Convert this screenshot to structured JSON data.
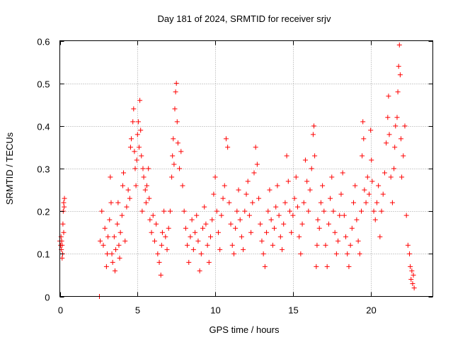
{
  "chart_data": {
    "type": "scatter",
    "title": "Day 181 of 2024, SRMTID for receiver srjv",
    "xlabel": "GPS time / hours",
    "ylabel": "SRMTID / TECUs",
    "xlim": [
      0,
      24
    ],
    "ylim": [
      0,
      0.6
    ],
    "xticks": [
      0,
      5,
      10,
      15,
      20
    ],
    "xtick_labels": [
      "0",
      "5",
      "10",
      "15",
      "20"
    ],
    "yticks": [
      0,
      0.1,
      0.2,
      0.3,
      0.4,
      0.5,
      0.6
    ],
    "ytick_labels": [
      "0",
      "0.1",
      "0.2",
      "0.3",
      "0.4",
      "0.5",
      "0.6"
    ],
    "grid": true,
    "marker": "+",
    "marker_color": "#ff0000",
    "series": [
      {
        "name": "srjv",
        "points": [
          [
            0.0,
            0.13
          ],
          [
            0.05,
            0.12
          ],
          [
            0.08,
            0.14
          ],
          [
            0.1,
            0.11
          ],
          [
            0.12,
            0.13
          ],
          [
            0.15,
            0.12
          ],
          [
            0.18,
            0.1
          ],
          [
            0.2,
            0.17
          ],
          [
            0.22,
            0.2
          ],
          [
            0.25,
            0.22
          ],
          [
            0.28,
            0.21
          ],
          [
            0.3,
            0.23
          ],
          [
            0.15,
            0.09
          ],
          [
            0.25,
            0.15
          ],
          [
            2.55,
            0.0
          ],
          [
            2.6,
            0.13
          ],
          [
            2.7,
            0.2
          ],
          [
            2.8,
            0.12
          ],
          [
            2.9,
            0.16
          ],
          [
            3.0,
            0.07
          ],
          [
            3.05,
            0.1
          ],
          [
            3.1,
            0.14
          ],
          [
            3.2,
            0.18
          ],
          [
            3.25,
            0.28
          ],
          [
            3.3,
            0.22
          ],
          [
            3.35,
            0.1
          ],
          [
            3.4,
            0.08
          ],
          [
            3.5,
            0.14
          ],
          [
            3.55,
            0.06
          ],
          [
            3.6,
            0.11
          ],
          [
            3.7,
            0.17
          ],
          [
            3.75,
            0.22
          ],
          [
            3.8,
            0.12
          ],
          [
            3.85,
            0.09
          ],
          [
            3.9,
            0.15
          ],
          [
            4.0,
            0.19
          ],
          [
            4.05,
            0.26
          ],
          [
            4.1,
            0.29
          ],
          [
            4.2,
            0.13
          ],
          [
            4.3,
            0.21
          ],
          [
            4.4,
            0.25
          ],
          [
            4.5,
            0.23
          ],
          [
            4.55,
            0.35
          ],
          [
            4.6,
            0.37
          ],
          [
            4.7,
            0.41
          ],
          [
            4.75,
            0.44
          ],
          [
            4.8,
            0.34
          ],
          [
            4.85,
            0.3
          ],
          [
            4.9,
            0.26
          ],
          [
            4.95,
            0.32
          ],
          [
            5.0,
            0.38
          ],
          [
            5.05,
            0.41
          ],
          [
            5.1,
            0.35
          ],
          [
            5.15,
            0.46
          ],
          [
            5.2,
            0.39
          ],
          [
            5.25,
            0.33
          ],
          [
            5.3,
            0.2
          ],
          [
            5.35,
            0.3
          ],
          [
            5.4,
            0.28
          ],
          [
            5.5,
            0.25
          ],
          [
            5.55,
            0.22
          ],
          [
            5.6,
            0.26
          ],
          [
            5.7,
            0.3
          ],
          [
            5.75,
            0.23
          ],
          [
            5.8,
            0.18
          ],
          [
            5.9,
            0.15
          ],
          [
            6.0,
            0.19
          ],
          [
            6.1,
            0.13
          ],
          [
            6.2,
            0.17
          ],
          [
            6.3,
            0.1
          ],
          [
            6.4,
            0.08
          ],
          [
            6.5,
            0.05
          ],
          [
            6.55,
            0.12
          ],
          [
            6.6,
            0.15
          ],
          [
            6.7,
            0.2
          ],
          [
            6.8,
            0.14
          ],
          [
            6.9,
            0.11
          ],
          [
            7.0,
            0.16
          ],
          [
            7.1,
            0.2
          ],
          [
            7.2,
            0.28
          ],
          [
            7.25,
            0.33
          ],
          [
            7.3,
            0.37
          ],
          [
            7.35,
            0.31
          ],
          [
            7.4,
            0.44
          ],
          [
            7.45,
            0.48
          ],
          [
            7.5,
            0.5
          ],
          [
            7.55,
            0.41
          ],
          [
            7.6,
            0.36
          ],
          [
            7.7,
            0.3
          ],
          [
            7.8,
            0.34
          ],
          [
            7.9,
            0.26
          ],
          [
            8.0,
            0.2
          ],
          [
            8.1,
            0.16
          ],
          [
            8.2,
            0.12
          ],
          [
            8.3,
            0.08
          ],
          [
            8.4,
            0.14
          ],
          [
            8.5,
            0.18
          ],
          [
            8.6,
            0.11
          ],
          [
            8.7,
            0.15
          ],
          [
            8.8,
            0.19
          ],
          [
            8.9,
            0.13
          ],
          [
            9.0,
            0.06
          ],
          [
            9.1,
            0.1
          ],
          [
            9.2,
            0.16
          ],
          [
            9.3,
            0.21
          ],
          [
            9.4,
            0.17
          ],
          [
            9.5,
            0.12
          ],
          [
            9.6,
            0.08
          ],
          [
            9.7,
            0.14
          ],
          [
            9.8,
            0.18
          ],
          [
            9.9,
            0.24
          ],
          [
            10.0,
            0.28
          ],
          [
            10.1,
            0.2
          ],
          [
            10.2,
            0.15
          ],
          [
            10.3,
            0.11
          ],
          [
            10.4,
            0.19
          ],
          [
            10.5,
            0.23
          ],
          [
            10.6,
            0.26
          ],
          [
            10.7,
            0.37
          ],
          [
            10.8,
            0.35
          ],
          [
            10.9,
            0.22
          ],
          [
            11.0,
            0.17
          ],
          [
            11.1,
            0.12
          ],
          [
            11.2,
            0.1
          ],
          [
            11.3,
            0.16
          ],
          [
            11.4,
            0.2
          ],
          [
            11.5,
            0.25
          ],
          [
            11.6,
            0.18
          ],
          [
            11.7,
            0.14
          ],
          [
            11.8,
            0.11
          ],
          [
            11.9,
            0.2
          ],
          [
            12.0,
            0.24
          ],
          [
            12.1,
            0.27
          ],
          [
            12.2,
            0.19
          ],
          [
            12.3,
            0.15
          ],
          [
            12.4,
            0.22
          ],
          [
            12.5,
            0.29
          ],
          [
            12.6,
            0.35
          ],
          [
            12.7,
            0.31
          ],
          [
            12.8,
            0.23
          ],
          [
            12.9,
            0.17
          ],
          [
            13.0,
            0.13
          ],
          [
            13.1,
            0.1
          ],
          [
            13.2,
            0.07
          ],
          [
            13.3,
            0.15
          ],
          [
            13.4,
            0.2
          ],
          [
            13.5,
            0.25
          ],
          [
            13.6,
            0.18
          ],
          [
            13.7,
            0.12
          ],
          [
            13.8,
            0.16
          ],
          [
            13.9,
            0.21
          ],
          [
            14.0,
            0.26
          ],
          [
            14.1,
            0.19
          ],
          [
            14.2,
            0.14
          ],
          [
            14.3,
            0.11
          ],
          [
            14.4,
            0.17
          ],
          [
            14.5,
            0.22
          ],
          [
            14.6,
            0.33
          ],
          [
            14.7,
            0.27
          ],
          [
            14.8,
            0.2
          ],
          [
            14.9,
            0.15
          ],
          [
            15.0,
            0.19
          ],
          [
            15.1,
            0.23
          ],
          [
            15.2,
            0.28
          ],
          [
            15.3,
            0.21
          ],
          [
            15.4,
            0.14
          ],
          [
            15.5,
            0.1
          ],
          [
            15.6,
            0.17
          ],
          [
            15.7,
            0.22
          ],
          [
            15.8,
            0.32
          ],
          [
            15.9,
            0.27
          ],
          [
            16.0,
            0.2
          ],
          [
            16.1,
            0.25
          ],
          [
            16.2,
            0.3
          ],
          [
            16.3,
            0.38
          ],
          [
            16.35,
            0.4
          ],
          [
            16.4,
            0.33
          ],
          [
            16.5,
            0.07
          ],
          [
            16.55,
            0.12
          ],
          [
            16.6,
            0.18
          ],
          [
            16.7,
            0.16
          ],
          [
            16.8,
            0.22
          ],
          [
            16.9,
            0.26
          ],
          [
            17.0,
            0.2
          ],
          [
            17.1,
            0.12
          ],
          [
            17.2,
            0.07
          ],
          [
            17.3,
            0.17
          ],
          [
            17.4,
            0.23
          ],
          [
            17.5,
            0.28
          ],
          [
            17.6,
            0.2
          ],
          [
            17.7,
            0.15
          ],
          [
            17.8,
            0.1
          ],
          [
            17.9,
            0.13
          ],
          [
            18.0,
            0.19
          ],
          [
            18.1,
            0.24
          ],
          [
            18.2,
            0.29
          ],
          [
            18.3,
            0.19
          ],
          [
            18.4,
            0.14
          ],
          [
            18.5,
            0.1
          ],
          [
            18.6,
            0.07
          ],
          [
            18.7,
            0.12
          ],
          [
            18.8,
            0.16
          ],
          [
            18.9,
            0.22
          ],
          [
            19.0,
            0.26
          ],
          [
            19.1,
            0.18
          ],
          [
            19.2,
            0.13
          ],
          [
            19.3,
            0.1
          ],
          [
            19.4,
            0.2
          ],
          [
            19.45,
            0.33
          ],
          [
            19.5,
            0.41
          ],
          [
            19.55,
            0.37
          ],
          [
            19.6,
            0.25
          ],
          [
            19.7,
            0.22
          ],
          [
            19.8,
            0.28
          ],
          [
            19.9,
            0.24
          ],
          [
            20.0,
            0.39
          ],
          [
            20.05,
            0.32
          ],
          [
            20.1,
            0.27
          ],
          [
            20.2,
            0.2
          ],
          [
            20.3,
            0.18
          ],
          [
            20.4,
            0.22
          ],
          [
            20.5,
            0.26
          ],
          [
            20.6,
            0.14
          ],
          [
            20.7,
            0.2
          ],
          [
            20.8,
            0.24
          ],
          [
            20.9,
            0.29
          ],
          [
            21.0,
            0.36
          ],
          [
            21.1,
            0.42
          ],
          [
            21.15,
            0.47
          ],
          [
            21.2,
            0.38
          ],
          [
            21.3,
            0.28
          ],
          [
            21.4,
            0.22
          ],
          [
            21.5,
            0.3
          ],
          [
            21.55,
            0.35
          ],
          [
            21.6,
            0.4
          ],
          [
            21.7,
            0.42
          ],
          [
            21.75,
            0.48
          ],
          [
            21.8,
            0.54
          ],
          [
            21.85,
            0.59
          ],
          [
            21.9,
            0.52
          ],
          [
            21.95,
            0.37
          ],
          [
            22.0,
            0.28
          ],
          [
            22.1,
            0.33
          ],
          [
            22.2,
            0.4
          ],
          [
            22.3,
            0.19
          ],
          [
            22.4,
            0.12
          ],
          [
            22.5,
            0.1
          ],
          [
            22.55,
            0.07
          ],
          [
            22.6,
            0.04
          ],
          [
            22.65,
            0.06
          ],
          [
            22.7,
            0.03
          ],
          [
            22.75,
            0.05
          ],
          [
            22.8,
            0.02
          ]
        ]
      }
    ]
  }
}
